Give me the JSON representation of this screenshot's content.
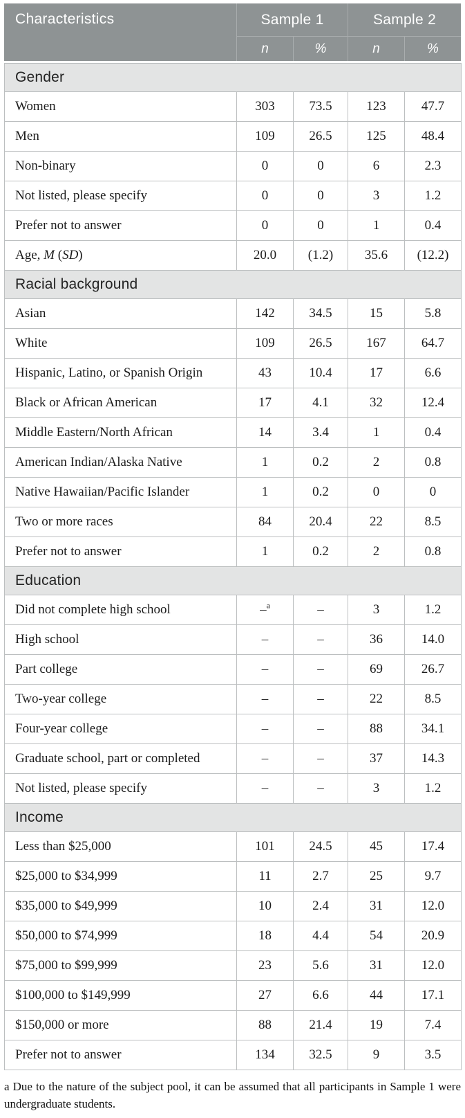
{
  "table": {
    "header": {
      "characteristics": "Characteristics",
      "groups": [
        {
          "label": "Sample 1"
        },
        {
          "label": "Sample 2"
        }
      ],
      "subheaders": [
        "n",
        "%",
        "n",
        "%"
      ]
    },
    "sections": [
      {
        "title": "Gender",
        "rows": [
          {
            "label": "Women",
            "values": [
              "303",
              "73.5",
              "123",
              "47.7"
            ]
          },
          {
            "label": "Men",
            "values": [
              "109",
              "26.5",
              "125",
              "48.4"
            ]
          },
          {
            "label": "Non-binary",
            "values": [
              "0",
              "0",
              "6",
              "2.3"
            ]
          },
          {
            "label": "Not listed, please specify",
            "values": [
              "0",
              "0",
              "3",
              "1.2"
            ]
          },
          {
            "label": "Prefer not to answer",
            "values": [
              "0",
              "0",
              "1",
              "0.4"
            ]
          },
          {
            "label": "Age, *M* (*SD*)",
            "values": [
              "20.0",
              "(1.2)",
              "35.6",
              "(12.2)"
            ]
          }
        ]
      },
      {
        "title": "Racial background",
        "rows": [
          {
            "label": "Asian",
            "values": [
              "142",
              "34.5",
              "15",
              "5.8"
            ]
          },
          {
            "label": "White",
            "values": [
              "109",
              "26.5",
              "167",
              "64.7"
            ]
          },
          {
            "label": "Hispanic, Latino, or Spanish Origin",
            "values": [
              "43",
              "10.4",
              "17",
              "6.6"
            ]
          },
          {
            "label": "Black or African American",
            "values": [
              "17",
              "4.1",
              "32",
              "12.4"
            ]
          },
          {
            "label": "Middle Eastern/North African",
            "values": [
              "14",
              "3.4",
              "1",
              "0.4"
            ]
          },
          {
            "label": "American Indian/Alaska Native",
            "values": [
              "1",
              "0.2",
              "2",
              "0.8"
            ]
          },
          {
            "label": "Native Hawaiian/Pacific Islander",
            "values": [
              "1",
              "0.2",
              "0",
              "0"
            ]
          },
          {
            "label": "Two or more races",
            "values": [
              "84",
              "20.4",
              "22",
              "8.5"
            ]
          },
          {
            "label": "Prefer not to answer",
            "values": [
              "1",
              "0.2",
              "2",
              "0.8"
            ]
          }
        ]
      },
      {
        "title": "Education",
        "rows": [
          {
            "label": "Did not complete high school",
            "values": [
              "–^a",
              "–",
              "3",
              "1.2"
            ]
          },
          {
            "label": "High school",
            "values": [
              "–",
              "–",
              "36",
              "14.0"
            ]
          },
          {
            "label": "Part college",
            "values": [
              "–",
              "–",
              "69",
              "26.7"
            ]
          },
          {
            "label": "Two-year college",
            "values": [
              "–",
              "–",
              "22",
              "8.5"
            ]
          },
          {
            "label": "Four-year college",
            "values": [
              "–",
              "–",
              "88",
              "34.1"
            ]
          },
          {
            "label": "Graduate school, part or completed",
            "values": [
              "–",
              "–",
              "37",
              "14.3"
            ]
          },
          {
            "label": "Not listed, please specify",
            "values": [
              "–",
              "–",
              "3",
              "1.2"
            ]
          }
        ]
      },
      {
        "title": "Income",
        "rows": [
          {
            "label": "Less than $25,000",
            "values": [
              "101",
              "24.5",
              "45",
              "17.4"
            ]
          },
          {
            "label": "$25,000 to $34,999",
            "values": [
              "11",
              "2.7",
              "25",
              "9.7"
            ]
          },
          {
            "label": "$35,000 to $49,999",
            "values": [
              "10",
              "2.4",
              "31",
              "12.0"
            ]
          },
          {
            "label": "$50,000 to $74,999",
            "values": [
              "18",
              "4.4",
              "54",
              "20.9"
            ]
          },
          {
            "label": "$75,000 to $99,999",
            "values": [
              "23",
              "5.6",
              "31",
              "12.0"
            ]
          },
          {
            "label": "$100,000 to $149,999",
            "values": [
              "27",
              "6.6",
              "44",
              "17.1"
            ]
          },
          {
            "label": "$150,000 or more",
            "values": [
              "88",
              "21.4",
              "19",
              "7.4"
            ]
          },
          {
            "label": "Prefer not to answer",
            "values": [
              "134",
              "32.5",
              "9",
              "3.5"
            ]
          }
        ]
      }
    ],
    "footnote": "a Due to the nature of the subject pool, it can be assumed that all participants in Sample 1 were undergraduate students."
  },
  "colors": {
    "header_bg": "#8e9394",
    "header_divider": "#a9adae",
    "section_bg": "#e3e4e4",
    "cell_border": "#bcbfc0",
    "header_text": "#ffffff",
    "body_text": "#1c1c1c"
  }
}
